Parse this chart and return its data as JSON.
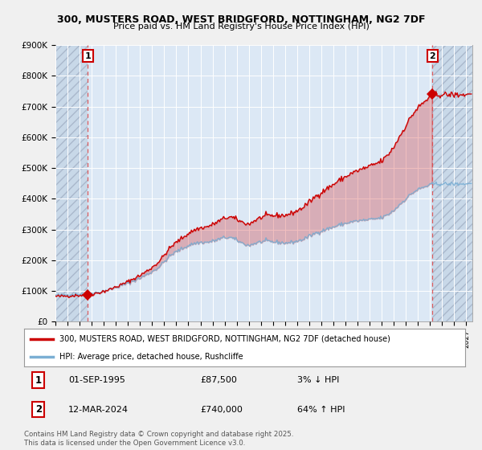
{
  "title_line1": "300, MUSTERS ROAD, WEST BRIDGFORD, NOTTINGHAM, NG2 7DF",
  "title_line2": "Price paid vs. HM Land Registry's House Price Index (HPI)",
  "transaction1": {
    "date": "01-SEP-1995",
    "price": 87500,
    "hpi_diff": "3% ↓ HPI",
    "label": "1"
  },
  "transaction2": {
    "date": "12-MAR-2024",
    "price": 740000,
    "hpi_diff": "64% ↑ HPI",
    "label": "2"
  },
  "legend_line1": "300, MUSTERS ROAD, WEST BRIDGFORD, NOTTINGHAM, NG2 7DF (detached house)",
  "legend_line2": "HPI: Average price, detached house, Rushcliffe",
  "footer": "Contains HM Land Registry data © Crown copyright and database right 2025.\nThis data is licensed under the Open Government Licence v3.0.",
  "ylim": [
    0,
    900000
  ],
  "ytick_vals": [
    0,
    100000,
    200000,
    300000,
    400000,
    500000,
    600000,
    700000,
    800000,
    900000
  ],
  "ytick_labels": [
    "£0",
    "£100K",
    "£200K",
    "£300K",
    "£400K",
    "£500K",
    "£600K",
    "£700K",
    "£800K",
    "£900K"
  ],
  "xlim_start": 1993.0,
  "xlim_end": 2027.5,
  "hpi_line_color": "#7bafd4",
  "price_line_color": "#cc0000",
  "dot_color": "#cc0000",
  "plot_bg_color": "#dce8f5",
  "hatch_bg_color": "#c8d4e0",
  "t1_x": 1995.67,
  "t1_y": 87500,
  "t2_x": 2024.2,
  "t2_y": 740000,
  "fig_bg": "#f0f0f0"
}
